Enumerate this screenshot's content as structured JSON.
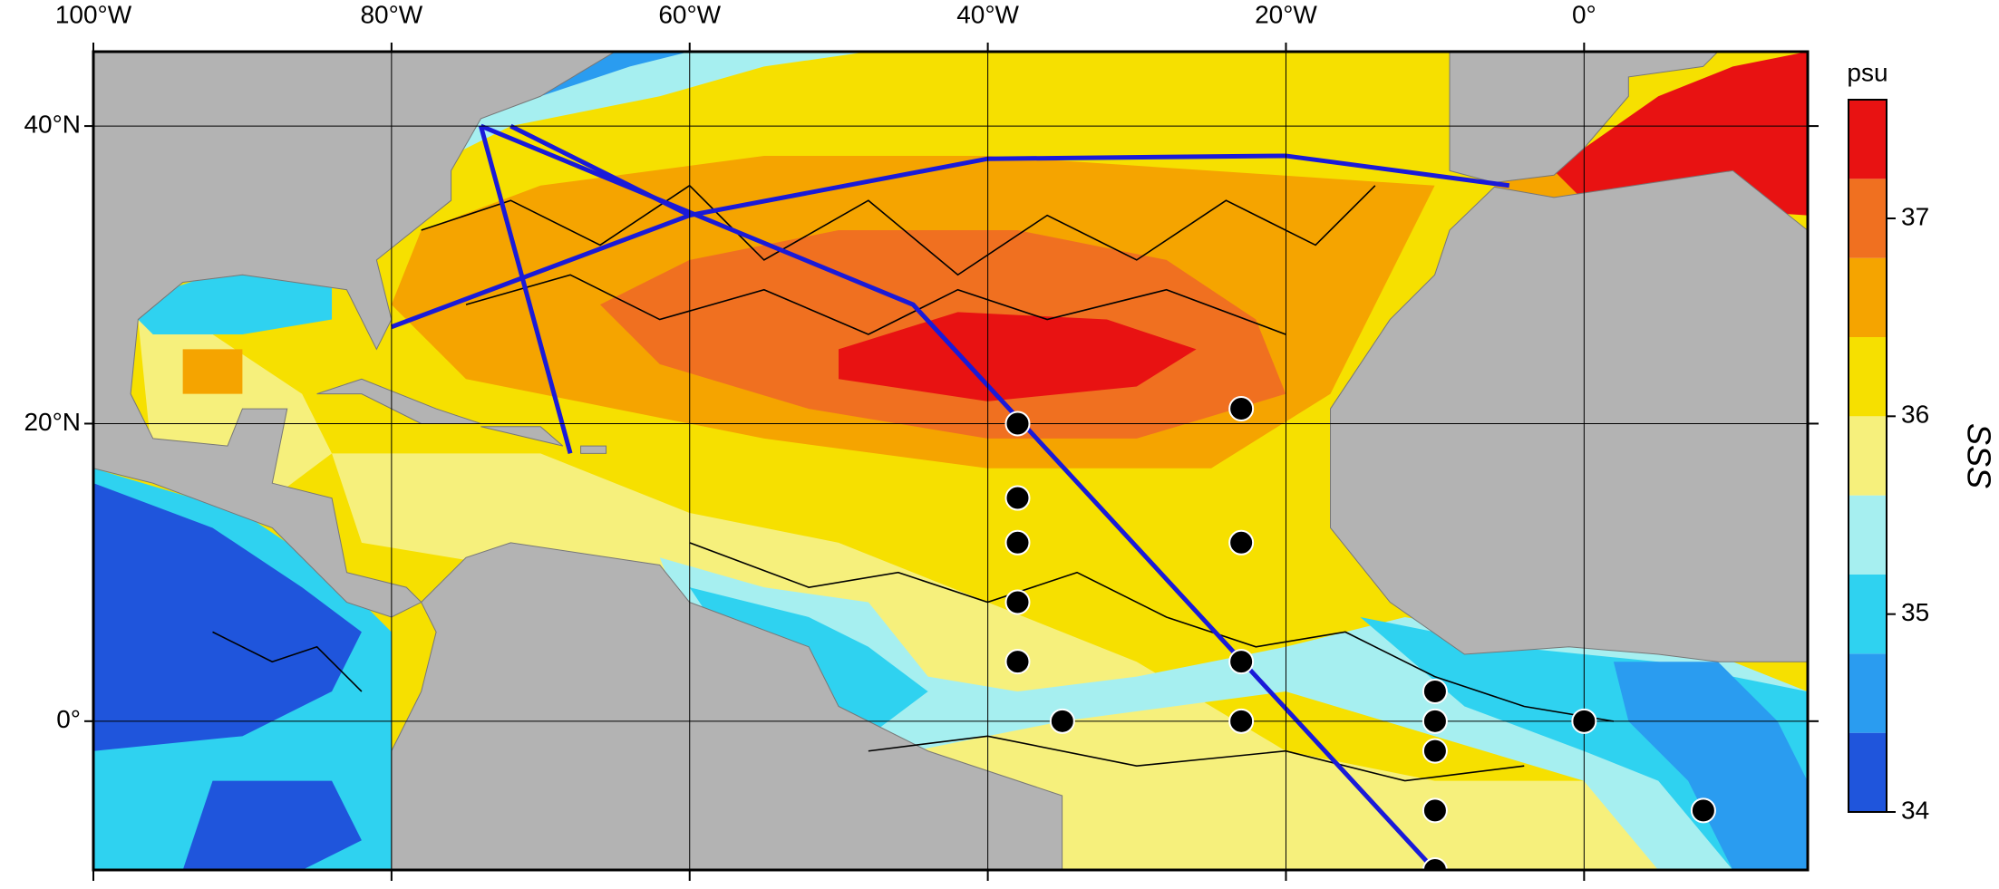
{
  "chart_data": {
    "type": "map",
    "xlim": [
      -100,
      15
    ],
    "ylim": [
      -10,
      45
    ],
    "xticks": [
      {
        "value": -100,
        "label": "100°W"
      },
      {
        "value": -80,
        "label": "80°W"
      },
      {
        "value": -60,
        "label": "60°W"
      },
      {
        "value": -40,
        "label": "40°W"
      },
      {
        "value": -20,
        "label": "20°W"
      },
      {
        "value": 0,
        "label": "0°"
      }
    ],
    "yticks": [
      {
        "value": 0,
        "label": "0°"
      },
      {
        "value": 20,
        "label": "20°N"
      },
      {
        "value": 40,
        "label": "40°N"
      }
    ],
    "grid": true,
    "moorings": {
      "lon": [
        -38,
        -38,
        -38,
        -38,
        -38,
        -35,
        -23,
        -23,
        -23,
        -23,
        -10,
        -10,
        -10,
        -10,
        -10,
        0,
        8
      ],
      "lat": [
        20,
        15,
        12,
        8,
        4,
        0,
        21,
        12,
        4,
        0,
        2,
        0,
        -2,
        -6,
        -10,
        0,
        -6
      ]
    },
    "colorbar": {
      "label": "psu",
      "title": "SSS",
      "lim": [
        34,
        37.6
      ],
      "ticks": [
        34,
        35,
        36,
        37
      ],
      "levels": [
        34,
        34.4,
        34.8,
        35.2,
        35.6,
        36,
        36.4,
        36.8,
        37.2,
        37.6
      ],
      "colors": [
        "#1f55dc",
        "#2a9cf0",
        "#2fd2f0",
        "#a6eff0",
        "#f6f07c",
        "#f6e000",
        "#f5a400",
        "#f07020",
        "#e81212"
      ]
    }
  }
}
